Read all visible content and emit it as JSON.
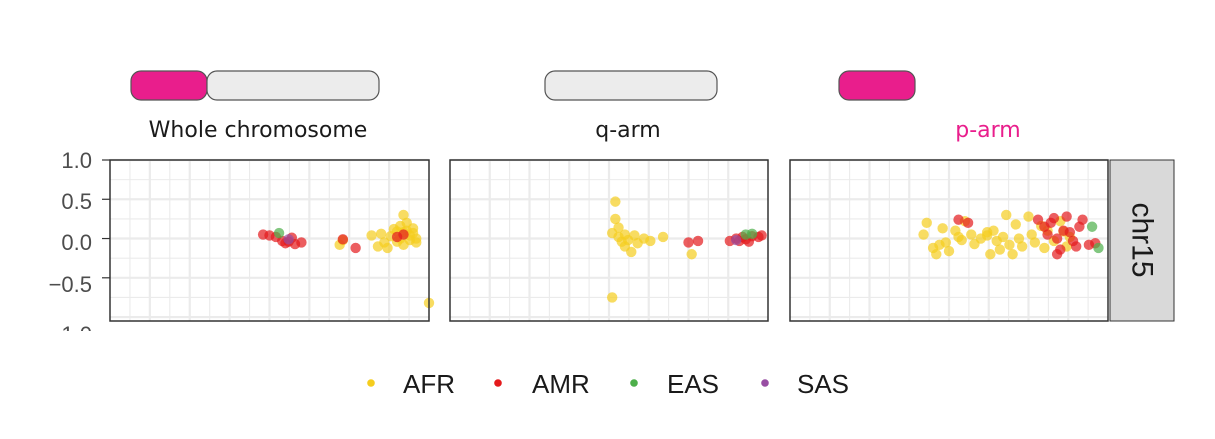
{
  "colors": {
    "pink": "#e91e8c",
    "bar_grey": "#ececec",
    "panel_border": "#333333",
    "grid": "#ebebeb",
    "strip_fill": "#d9d9d9",
    "AFR": "#f5cd1e",
    "AMR": "#e41a1c",
    "EAS": "#4daf4a",
    "SAS": "#984ea3"
  },
  "chart_data": {
    "type": "scatter",
    "ylim": [
      -1.05,
      1.0
    ],
    "xlim": [
      0,
      1
    ],
    "yticks": [
      1.0,
      0.5,
      0.0,
      -0.5
    ],
    "ytick_labels": [
      "1.0",
      "0.5",
      "0.0",
      "−0.5"
    ],
    "strip_label": "chr15",
    "legend": {
      "position": "bottom",
      "entries": [
        {
          "name": "AFR",
          "label": "AFR"
        },
        {
          "name": "AMR",
          "label": "AMR"
        },
        {
          "name": "EAS",
          "label": "EAS"
        },
        {
          "name": "SAS",
          "label": "SAS"
        }
      ]
    },
    "panels": [
      {
        "id": "whole",
        "title": "Whole chromosome",
        "title_color": "#1a1a1a",
        "chromosome": [
          {
            "part": "p-arm",
            "fraction": 0.3,
            "color": "#e91e8c"
          },
          {
            "part": "q-arm",
            "fraction": 0.7,
            "color": "#ececec"
          }
        ],
        "points": {
          "AMR": [
            [
              0.48,
              0.05
            ],
            [
              0.5,
              0.04
            ],
            [
              0.52,
              0.02
            ],
            [
              0.54,
              -0.03
            ],
            [
              0.55,
              -0.06
            ],
            [
              0.56,
              -0.04
            ],
            [
              0.57,
              0.01
            ],
            [
              0.58,
              -0.07
            ],
            [
              0.6,
              -0.05
            ],
            [
              0.73,
              -0.01
            ],
            [
              0.77,
              -0.12
            ],
            [
              0.9,
              0.02
            ],
            [
              0.92,
              0.05
            ]
          ],
          "EAS": [
            [
              0.53,
              0.07
            ]
          ],
          "SAS": [
            [
              0.56,
              -0.01
            ]
          ],
          "AFR": [
            [
              0.72,
              -0.08
            ],
            [
              0.73,
              -0.02
            ],
            [
              0.82,
              0.04
            ],
            [
              0.84,
              -0.1
            ],
            [
              0.85,
              0.06
            ],
            [
              0.86,
              -0.05
            ],
            [
              0.87,
              -0.12
            ],
            [
              0.88,
              0.03
            ],
            [
              0.89,
              0.12
            ],
            [
              0.9,
              0.09
            ],
            [
              0.9,
              -0.04
            ],
            [
              0.91,
              0.16
            ],
            [
              0.91,
              0.0
            ],
            [
              0.92,
              0.08
            ],
            [
              0.92,
              -0.08
            ],
            [
              0.93,
              0.2
            ],
            [
              0.93,
              0.1
            ],
            [
              0.94,
              0.04
            ],
            [
              0.94,
              -0.02
            ],
            [
              0.95,
              0.13
            ],
            [
              0.95,
              0.07
            ],
            [
              0.96,
              0.0
            ],
            [
              0.96,
              -0.05
            ],
            [
              0.92,
              0.3
            ],
            [
              1.0,
              -0.82
            ]
          ]
        }
      },
      {
        "id": "q",
        "title": "q-arm",
        "title_color": "#1a1a1a",
        "chromosome": [
          {
            "part": "q-arm",
            "fraction": 1.0,
            "color": "#ececec"
          }
        ],
        "points": {
          "AFR": [
            [
              0.52,
              0.47
            ],
            [
              0.52,
              0.25
            ],
            [
              0.53,
              0.14
            ],
            [
              0.51,
              0.07
            ],
            [
              0.53,
              0.02
            ],
            [
              0.54,
              -0.04
            ],
            [
              0.55,
              0.05
            ],
            [
              0.55,
              -0.1
            ],
            [
              0.56,
              -0.02
            ],
            [
              0.57,
              -0.17
            ],
            [
              0.58,
              0.04
            ],
            [
              0.59,
              -0.06
            ],
            [
              0.61,
              0.0
            ],
            [
              0.63,
              -0.03
            ],
            [
              0.67,
              0.02
            ],
            [
              0.76,
              -0.2
            ],
            [
              0.51,
              -0.75
            ]
          ],
          "AMR": [
            [
              0.75,
              -0.05
            ],
            [
              0.78,
              -0.03
            ],
            [
              0.88,
              -0.03
            ],
            [
              0.9,
              0.0
            ],
            [
              0.91,
              -0.03
            ],
            [
              0.92,
              0.02
            ],
            [
              0.93,
              -0.01
            ],
            [
              0.94,
              -0.04
            ],
            [
              0.95,
              0.03
            ],
            [
              0.97,
              0.02
            ],
            [
              0.98,
              0.04
            ]
          ],
          "EAS": [
            [
              0.93,
              0.05
            ],
            [
              0.95,
              0.06
            ]
          ],
          "SAS": [
            [
              0.9,
              -0.02
            ]
          ]
        }
      },
      {
        "id": "p",
        "title": "p-arm",
        "title_color": "#e91e8c",
        "chromosome": [
          {
            "part": "p-arm",
            "fraction": 1.0,
            "color": "#e91e8c"
          }
        ],
        "points": {
          "AFR": [
            [
              0.42,
              0.05
            ],
            [
              0.43,
              0.2
            ],
            [
              0.45,
              -0.12
            ],
            [
              0.46,
              -0.2
            ],
            [
              0.47,
              -0.08
            ],
            [
              0.48,
              0.13
            ],
            [
              0.49,
              -0.05
            ],
            [
              0.5,
              -0.16
            ],
            [
              0.52,
              0.1
            ],
            [
              0.53,
              0.02
            ],
            [
              0.54,
              -0.02
            ],
            [
              0.55,
              0.22
            ],
            [
              0.57,
              0.05
            ],
            [
              0.58,
              -0.07
            ],
            [
              0.6,
              0.0
            ],
            [
              0.62,
              0.08
            ],
            [
              0.63,
              -0.2
            ],
            [
              0.64,
              0.1
            ],
            [
              0.65,
              -0.03
            ],
            [
              0.66,
              -0.14
            ],
            [
              0.67,
              0.02
            ],
            [
              0.68,
              0.3
            ],
            [
              0.69,
              -0.08
            ],
            [
              0.7,
              -0.2
            ],
            [
              0.71,
              0.18
            ],
            [
              0.72,
              0.0
            ],
            [
              0.73,
              -0.1
            ],
            [
              0.75,
              0.28
            ],
            [
              0.76,
              0.05
            ],
            [
              0.77,
              -0.05
            ],
            [
              0.79,
              0.16
            ],
            [
              0.8,
              -0.12
            ],
            [
              0.81,
              0.1
            ],
            [
              0.83,
              -0.03
            ],
            [
              0.85,
              0.22
            ],
            [
              0.86,
              0.09
            ],
            [
              0.87,
              -0.1
            ],
            [
              0.88,
              0.02
            ],
            [
              0.62,
              0.04
            ]
          ],
          "AMR": [
            [
              0.53,
              0.24
            ],
            [
              0.56,
              0.2
            ],
            [
              0.78,
              0.24
            ],
            [
              0.8,
              0.15
            ],
            [
              0.81,
              0.05
            ],
            [
              0.82,
              0.2
            ],
            [
              0.83,
              0.26
            ],
            [
              0.84,
              0.0
            ],
            [
              0.85,
              -0.14
            ],
            [
              0.86,
              0.1
            ],
            [
              0.87,
              0.28
            ],
            [
              0.88,
              0.08
            ],
            [
              0.89,
              -0.03
            ],
            [
              0.9,
              -0.1
            ],
            [
              0.91,
              0.15
            ],
            [
              0.92,
              0.24
            ],
            [
              0.94,
              -0.08
            ],
            [
              0.96,
              -0.06
            ],
            [
              0.84,
              -0.2
            ]
          ],
          "EAS": [
            [
              0.95,
              0.15
            ],
            [
              0.97,
              -0.12
            ]
          ],
          "SAS": []
        }
      }
    ]
  }
}
